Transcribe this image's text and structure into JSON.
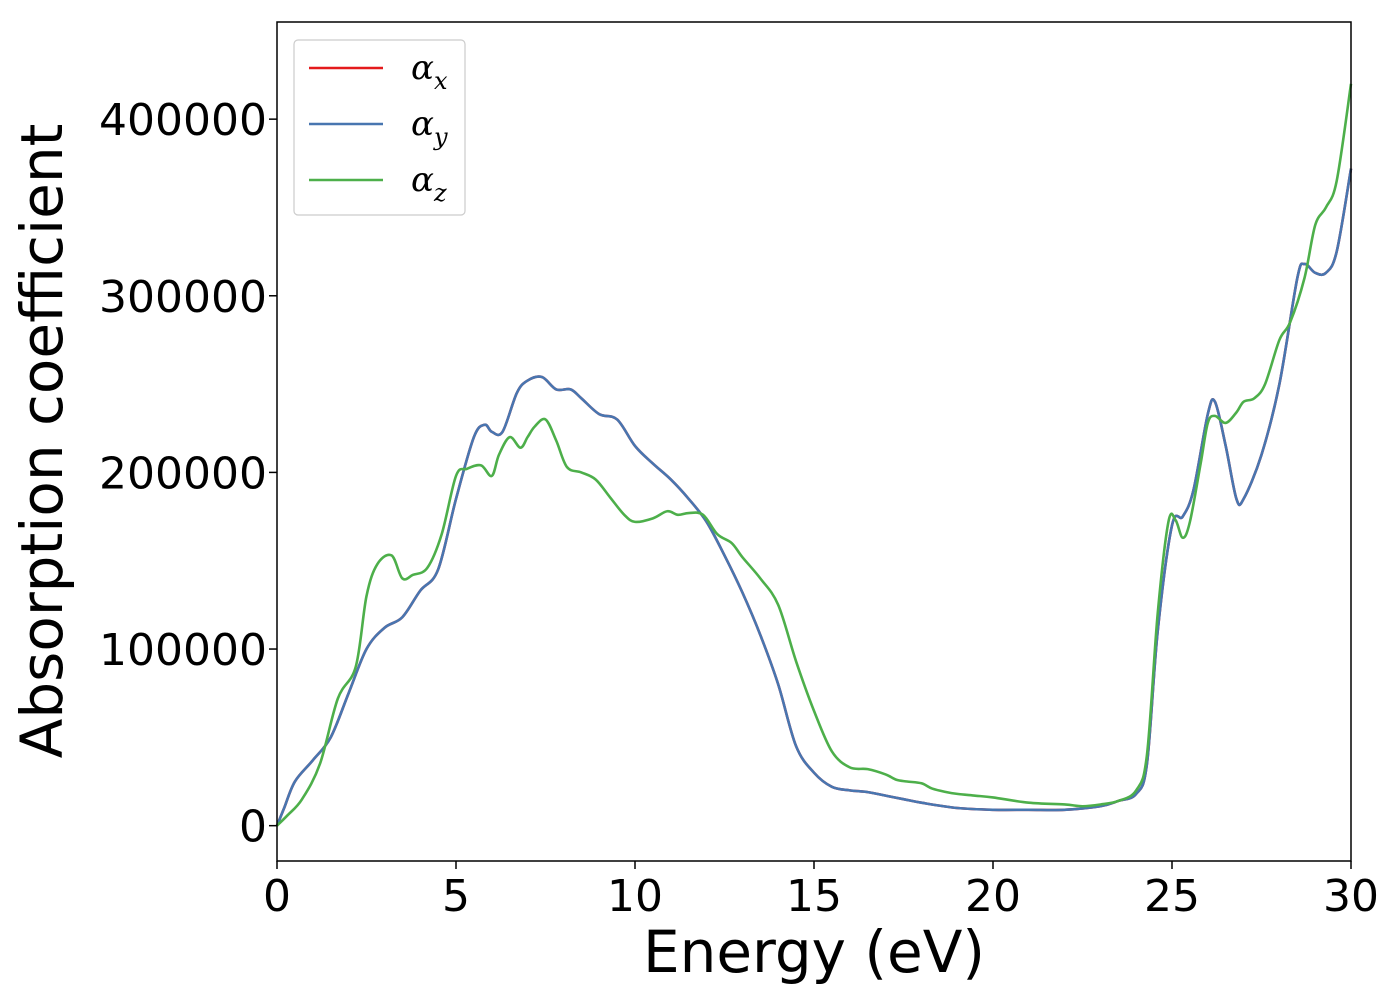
{
  "chart_data": {
    "type": "line",
    "title": "",
    "xlabel": "Energy (eV)",
    "ylabel": "Absorption coefficient",
    "xlim": [
      0,
      30
    ],
    "ylim": [
      -20000,
      455000
    ],
    "xticks": [
      0,
      5,
      10,
      15,
      20,
      25,
      30
    ],
    "yticks": [
      0,
      100000,
      200000,
      300000,
      400000
    ],
    "grid": false,
    "legend": "top-left",
    "series": [
      {
        "name": "α_x",
        "color": "#e41a1c",
        "x": [
          0,
          0.2,
          0.5,
          1.0,
          1.5,
          2.0,
          2.5,
          3.0,
          3.5,
          4.0,
          4.5,
          5.0,
          5.5,
          5.8,
          6.0,
          6.3,
          6.7,
          7.0,
          7.4,
          7.8,
          8.2,
          8.5,
          9.0,
          9.5,
          10.0,
          10.5,
          11.0,
          11.5,
          12.0,
          12.5,
          13.0,
          13.5,
          14.0,
          14.5,
          15.0,
          15.5,
          16.0,
          16.5,
          17.0,
          17.5,
          18.0,
          19.0,
          20.0,
          21.0,
          22.0,
          23.0,
          23.5,
          24.0,
          24.3,
          24.6,
          25.0,
          25.3,
          25.6,
          26.0,
          26.2,
          26.5,
          26.8,
          27.0,
          27.5,
          28.0,
          28.5,
          28.7,
          29.0,
          29.3,
          29.6,
          30.0
        ],
        "values": [
          0,
          10000,
          25000,
          37000,
          50000,
          75000,
          100000,
          112000,
          118000,
          133000,
          145000,
          185000,
          220000,
          227000,
          223000,
          223000,
          245000,
          252000,
          254000,
          247000,
          247000,
          242000,
          233000,
          230000,
          215000,
          205000,
          196000,
          185000,
          172000,
          153000,
          132000,
          108000,
          80000,
          45000,
          30000,
          22000,
          20000,
          19000,
          17000,
          15000,
          13000,
          10000,
          9000,
          9000,
          9000,
          11000,
          14000,
          18000,
          35000,
          110000,
          170000,
          175000,
          190000,
          233000,
          240000,
          215000,
          185000,
          185000,
          210000,
          250000,
          310000,
          318000,
          313000,
          313000,
          325000,
          372000
        ]
      },
      {
        "name": "α_y",
        "color": "#4876b0",
        "x": [
          0,
          0.2,
          0.5,
          1.0,
          1.5,
          2.0,
          2.5,
          3.0,
          3.5,
          4.0,
          4.5,
          5.0,
          5.5,
          5.8,
          6.0,
          6.3,
          6.7,
          7.0,
          7.4,
          7.8,
          8.2,
          8.5,
          9.0,
          9.5,
          10.0,
          10.5,
          11.0,
          11.5,
          12.0,
          12.5,
          13.0,
          13.5,
          14.0,
          14.5,
          15.0,
          15.5,
          16.0,
          16.5,
          17.0,
          17.5,
          18.0,
          19.0,
          20.0,
          21.0,
          22.0,
          23.0,
          23.5,
          24.0,
          24.3,
          24.6,
          25.0,
          25.3,
          25.6,
          26.0,
          26.2,
          26.5,
          26.8,
          27.0,
          27.5,
          28.0,
          28.5,
          28.7,
          29.0,
          29.3,
          29.6,
          30.0
        ],
        "values": [
          0,
          10000,
          25000,
          37000,
          50000,
          75000,
          100000,
          112000,
          118000,
          133000,
          145000,
          185000,
          220000,
          227000,
          223000,
          223000,
          245000,
          252000,
          254000,
          247000,
          247000,
          242000,
          233000,
          230000,
          215000,
          205000,
          196000,
          185000,
          172000,
          153000,
          132000,
          108000,
          80000,
          45000,
          30000,
          22000,
          20000,
          19000,
          17000,
          15000,
          13000,
          10000,
          9000,
          9000,
          9000,
          11000,
          14000,
          18000,
          35000,
          110000,
          170000,
          175000,
          190000,
          233000,
          240000,
          215000,
          185000,
          185000,
          210000,
          250000,
          310000,
          318000,
          313000,
          313000,
          325000,
          372000
        ]
      },
      {
        "name": "α_z",
        "color": "#4daf4a",
        "x": [
          0,
          0.3,
          0.7,
          1.2,
          1.7,
          2.2,
          2.5,
          2.8,
          3.2,
          3.5,
          3.8,
          4.2,
          4.6,
          5.0,
          5.3,
          5.7,
          6.0,
          6.2,
          6.5,
          6.8,
          7.0,
          7.2,
          7.5,
          7.8,
          8.1,
          8.5,
          8.9,
          9.3,
          9.7,
          10.0,
          10.5,
          10.9,
          11.2,
          11.5,
          11.9,
          12.3,
          12.7,
          13.0,
          13.5,
          14.0,
          14.5,
          15.0,
          15.5,
          16.0,
          16.5,
          17.0,
          17.3,
          17.6,
          18.0,
          18.3,
          18.7,
          19.0,
          19.5,
          20.0,
          21.0,
          22.0,
          22.5,
          23.0,
          23.5,
          24.0,
          24.3,
          24.6,
          24.9,
          25.1,
          25.3,
          25.5,
          25.8,
          26.0,
          26.2,
          26.5,
          26.8,
          27.0,
          27.3,
          27.6,
          28.0,
          28.3,
          28.7,
          29.0,
          29.3,
          29.6,
          30.0
        ],
        "values": [
          0,
          6000,
          15000,
          35000,
          72000,
          90000,
          130000,
          148000,
          153000,
          140000,
          142000,
          146000,
          165000,
          198000,
          202000,
          204000,
          198000,
          210000,
          220000,
          214000,
          220000,
          226000,
          230000,
          218000,
          203000,
          200000,
          196000,
          186000,
          176000,
          172000,
          174000,
          178000,
          176000,
          177000,
          176000,
          165000,
          160000,
          152000,
          140000,
          125000,
          93000,
          65000,
          42000,
          33000,
          32000,
          29000,
          26000,
          25000,
          24000,
          21000,
          19000,
          18000,
          17000,
          16000,
          13000,
          12000,
          11000,
          12000,
          14000,
          20000,
          40000,
          120000,
          172000,
          173000,
          163000,
          172000,
          205000,
          228000,
          232000,
          228000,
          234000,
          240000,
          242000,
          250000,
          275000,
          285000,
          310000,
          340000,
          350000,
          365000,
          420000
        ]
      }
    ]
  }
}
